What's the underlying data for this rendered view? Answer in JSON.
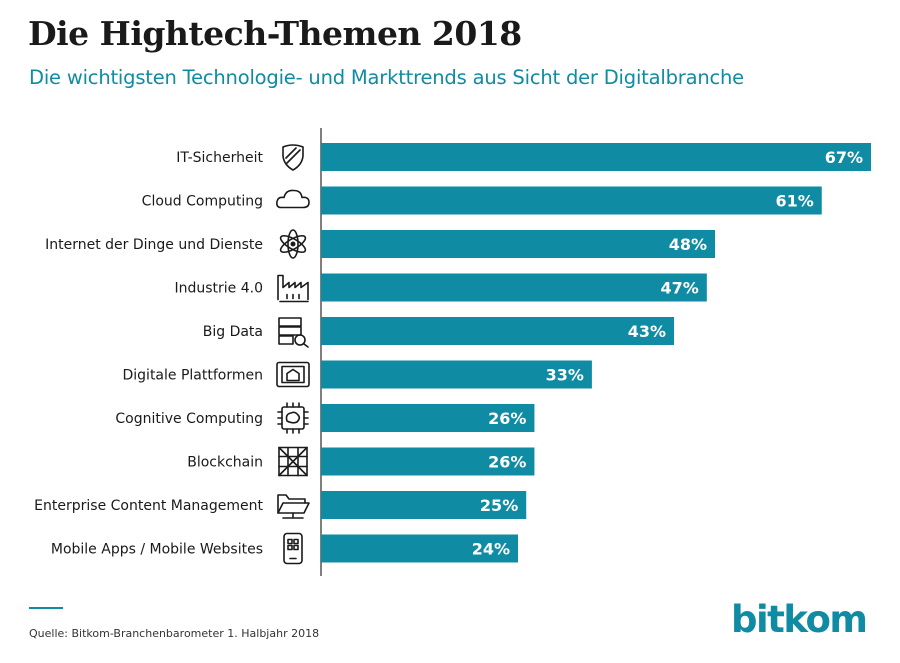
{
  "header": {
    "title": "Die Hightech-Themen 2018",
    "subtitle": "Die wichtigsten Technologie- und Markttrends aus Sicht der Digitalbranche"
  },
  "footer": {
    "source": "Quelle: Bitkom-Branchenbarometer 1. Halbjahr 2018",
    "logo": "bitkom"
  },
  "colors": {
    "bar": "#0f8ba3",
    "subtitle": "#0f8ba3",
    "logo": "#0f8ba3",
    "text": "#1a1a1a"
  },
  "chart_data": {
    "type": "bar",
    "orientation": "horizontal",
    "title": "Die Hightech-Themen 2018",
    "subtitle": "Die wichtigsten Technologie- und Markttrends aus Sicht der Digitalbranche",
    "categories": [
      "IT-Sicherheit",
      "Cloud Computing",
      "Internet der Dinge und Dienste",
      "Industrie 4.0",
      "Big Data",
      "Digitale Plattformen",
      "Cognitive Computing",
      "Blockchain",
      "Enterprise Content Management",
      "Mobile Apps / Mobile Websites"
    ],
    "values": [
      67,
      61,
      48,
      47,
      43,
      33,
      26,
      26,
      25,
      24
    ],
    "value_labels": [
      "67%",
      "61%",
      "48%",
      "47%",
      "43%",
      "33%",
      "26%",
      "26%",
      "25%",
      "24%"
    ],
    "icons": [
      "shield-icon",
      "cloud-icon",
      "atom-icon",
      "factory-icon",
      "server-search-icon",
      "tablet-home-icon",
      "chip-brain-icon",
      "blockchain-grid-icon",
      "folder-icon",
      "smartphone-icon"
    ],
    "unit": "%",
    "xlim": [
      0,
      67
    ],
    "grid": false,
    "legend": "none"
  }
}
